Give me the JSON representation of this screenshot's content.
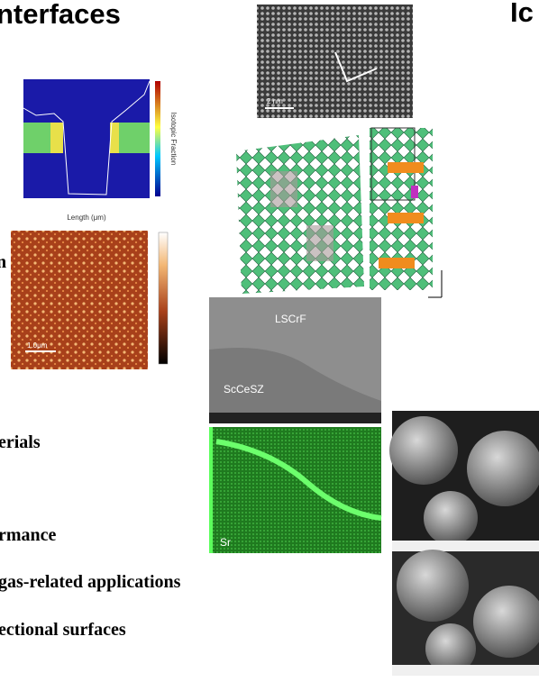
{
  "header": {
    "title": "nterfaces",
    "title_right": "Ic"
  },
  "bullets": [
    "n",
    "erials",
    "rmance",
    "gas-related applications",
    "ectional surfaces"
  ],
  "figures": {
    "profile_xlabel": "Length (μm)",
    "profile_colorbar": "Isotopic Fraction",
    "afm_scale": "1.0μm",
    "tem_scale": "2 nm",
    "sem_top": "LSCrF",
    "sem_bottom": "ScCeSZ",
    "map_element": "Sr"
  }
}
